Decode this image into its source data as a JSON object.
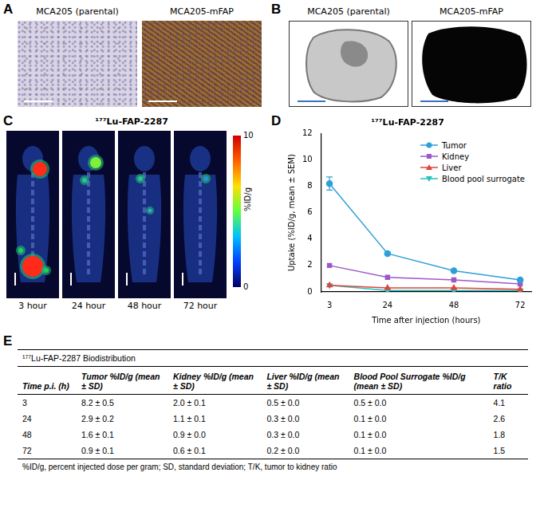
{
  "panel_a": {
    "letter": "A",
    "images": [
      {
        "label": "MCA205 (parental)"
      },
      {
        "label": "MCA205-mFAP"
      }
    ]
  },
  "panel_b": {
    "letter": "B",
    "images": [
      {
        "label": "MCA205 (parental)"
      },
      {
        "label": "MCA205-mFAP"
      }
    ]
  },
  "panel_c": {
    "letter": "C",
    "title": "¹⁷⁷Lu-FAP-2287",
    "time_labels": [
      "3 hour",
      "24 hour",
      "48 hour",
      "72 hour"
    ],
    "colorbar": {
      "range": [
        0,
        10
      ],
      "ticks": [
        0,
        10
      ],
      "label": "%ID/g"
    }
  },
  "chart_data": {
    "letter": "D",
    "type": "line",
    "title": "¹⁷⁷Lu-FAP-2287",
    "x_label": "Time after injection (hours)",
    "y_label": "Uptake (%ID/g, mean ± SEM)",
    "x": [
      3,
      24,
      48,
      72
    ],
    "xlim": [
      0,
      76
    ],
    "xticks": [
      3,
      24,
      48,
      72
    ],
    "ylim": [
      0,
      12
    ],
    "yticks": [
      0,
      2,
      4,
      6,
      8,
      10,
      12
    ],
    "grid": false,
    "legend": "upper right",
    "series": [
      {
        "name": "Tumor",
        "color": "#2f9fd8",
        "marker": "circle",
        "values": [
          8.2,
          2.9,
          1.6,
          0.9
        ],
        "errors": [
          0.5,
          0.1,
          0.05,
          0.05
        ]
      },
      {
        "name": "Kidney",
        "color": "#9b59c9",
        "marker": "square",
        "values": [
          2.0,
          1.1,
          0.9,
          0.6
        ]
      },
      {
        "name": "Liver",
        "color": "#e0443c",
        "marker": "triangle",
        "values": [
          0.5,
          0.3,
          0.3,
          0.2
        ]
      },
      {
        "name": "Blood pool surrogate",
        "color": "#25c0c0",
        "marker": "triangle-down",
        "values": [
          0.5,
          0.1,
          0.1,
          0.1
        ]
      }
    ]
  },
  "panel_e": {
    "letter": "E",
    "table": {
      "title": "¹⁷⁷Lu-FAP-2287 Biodistribution",
      "header": [
        "Time p.i. (h)",
        "Tumor %ID/g (mean ± SD)",
        "Kidney %ID/g (mean ± SD)",
        "Liver %ID/g (mean ± SD)",
        "Blood Pool Surrogate %ID/g (mean ± SD)",
        "T/K ratio"
      ],
      "rows": [
        [
          "3",
          "8.2 ± 0.5",
          "2.0 ± 0.1",
          "0.5 ± 0.0",
          "0.5 ± 0.0",
          "4.1"
        ],
        [
          "24",
          "2.9 ± 0.2",
          "1.1 ± 0.1",
          "0.3 ± 0.0",
          "0.1 ± 0.0",
          "2.6"
        ],
        [
          "48",
          "1.6 ± 0.1",
          "0.9 ± 0.0",
          "0.3 ± 0.0",
          "0.1 ± 0.0",
          "1.8"
        ],
        [
          "72",
          "0.9 ± 0.1",
          "0.6 ± 0.1",
          "0.2 ± 0.0",
          "0.1 ± 0.0",
          "1.5"
        ]
      ],
      "footnote": "%ID/g, percent injected dose per gram; SD, standard deviation; T/K, tumor to kidney ratio"
    }
  }
}
